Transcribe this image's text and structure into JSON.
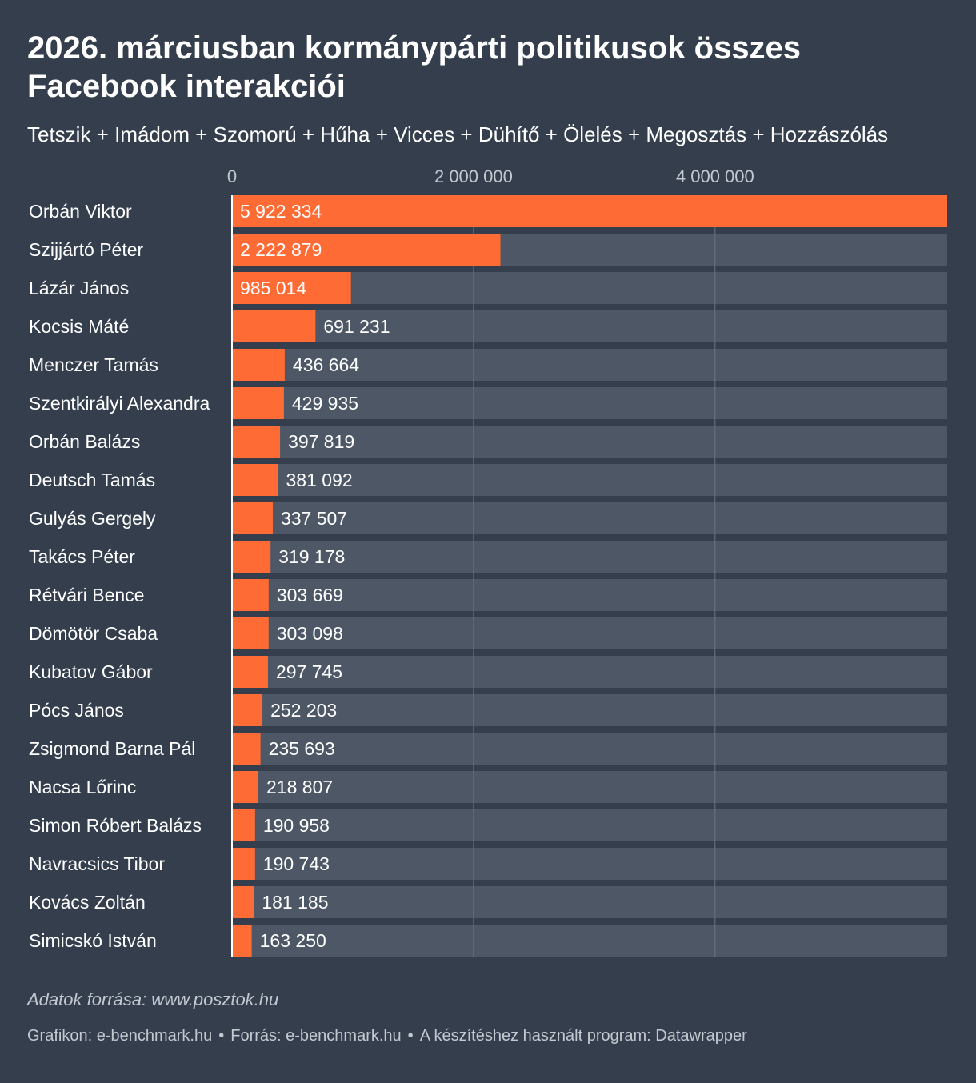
{
  "title": "2026. márciusban kormánypárti politikusok összes Facebook interakciói",
  "subtitle": "Tetszik + Imádom + Szomorú + Hűha + Vicces + Dühítő + Ölelés + Megosztás + Hozzászólás",
  "colors": {
    "background": "#343e4d",
    "bar": "#ff6b35",
    "track": "#4d5766",
    "grid": "#6b7585",
    "axis_text": "#c4c9d1"
  },
  "chart_data": {
    "type": "bar",
    "orientation": "horizontal",
    "title": "2026. márciusban kormánypárti politikusok összes Facebook interakciói",
    "xlabel": "",
    "ylabel": "",
    "xlim": [
      0,
      5922334
    ],
    "grid": true,
    "x_ticks": [
      0,
      2000000,
      4000000
    ],
    "x_tick_labels": [
      "0",
      "2 000 000",
      "4 000 000"
    ],
    "categories": [
      "Orbán Viktor",
      "Szijjártó Péter",
      "Lázár János",
      "Kocsis Máté",
      "Menczer Tamás",
      "Szentkirályi Alexandra",
      "Orbán Balázs",
      "Deutsch Tamás",
      "Gulyás Gergely",
      "Takács Péter",
      "Rétvári Bence",
      "Dömötör Csaba",
      "Kubatov Gábor",
      "Pócs János",
      "Zsigmond Barna Pál",
      "Nacsa Lőrinc",
      "Simon Róbert Balázs",
      "Navracsics Tibor",
      "Kovács Zoltán",
      "Simicskó István"
    ],
    "values": [
      5922334,
      2222879,
      985014,
      691231,
      436664,
      429935,
      397819,
      381092,
      337507,
      319178,
      303669,
      303098,
      297745,
      252203,
      235693,
      218807,
      190958,
      190743,
      181185,
      163250
    ],
    "value_labels": [
      "5 922 334",
      "2 222 879",
      "985 014",
      "691 231",
      "436 664",
      "429 935",
      "397 819",
      "381 092",
      "337 507",
      "319 178",
      "303 669",
      "303 098",
      "297 745",
      "252 203",
      "235 693",
      "218 807",
      "190 958",
      "190 743",
      "181 185",
      "163 250"
    ]
  },
  "source_note": "Adatok forrása: www.posztok.hu",
  "footer": {
    "graphic": "Grafikon: e-benchmark.hu",
    "source": "Forrás: e-benchmark.hu",
    "tool": "A készítéshez használt program: Datawrapper",
    "separator": "•"
  }
}
